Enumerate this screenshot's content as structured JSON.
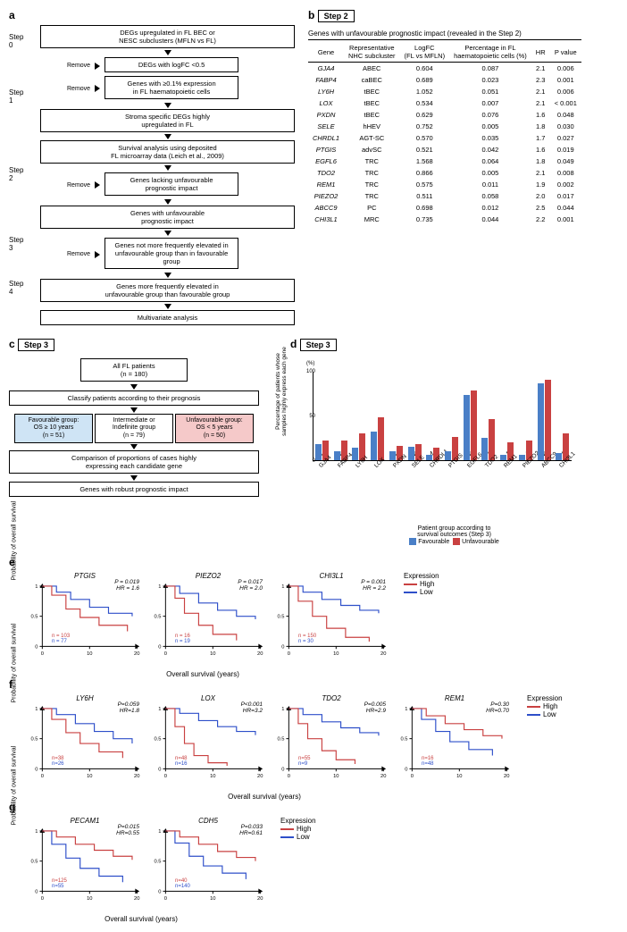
{
  "panelA": {
    "steps": [
      "Step\n0",
      "Step\n1",
      "Step\n2",
      "Step\n3",
      "Step\n4"
    ],
    "box0": "DEGs upregulated in FL BEC or\nNESC subclusters (MFLN vs FL)",
    "remove1a": "DEGs with logFC <0.5",
    "remove1b": "Genes with ≥0.1% expression\nin FL haematopoietic cells",
    "box1": "Stroma specific DEGs highly\nupregulated in FL",
    "box2a": "Survival analysis using deposited\nFL microarray data (Leich et al., 2009)",
    "remove2": "Genes lacking unfavourable\nprognostic impact",
    "box2b": "Genes with unfavourable\nprognostic impact",
    "remove3": "Genes not more frequently elevated in\nunfavourable group than in favourable group",
    "box3": "Genes more frequently elevated in\nunfavourable group than favourable group",
    "box4": "Multivariate analysis",
    "remove_label": "Remove"
  },
  "panelB": {
    "caption": "Genes with unfavourable prognostic impact (revealed in the Step 2)",
    "headers": [
      "Gene",
      "Representative\nNHC subcluster",
      "LogFC\n(FL vs MFLN)",
      "Percentage in FL\nhaematopoietic cells (%)",
      "HR",
      "P value"
    ],
    "rows": [
      [
        "GJA4",
        "ABEC",
        "0.604",
        "0.087",
        "2.1",
        "0.006"
      ],
      [
        "FABP4",
        "caBEC",
        "0.689",
        "0.023",
        "2.3",
        "0.001"
      ],
      [
        "LY6H",
        "tBEC",
        "1.052",
        "0.051",
        "2.1",
        "0.006"
      ],
      [
        "LOX",
        "tBEC",
        "0.534",
        "0.007",
        "2.1",
        "< 0.001"
      ],
      [
        "PXDN",
        "tBEC",
        "0.629",
        "0.076",
        "1.6",
        "0.048"
      ],
      [
        "SELE",
        "hHEV",
        "0.752",
        "0.005",
        "1.8",
        "0.030"
      ],
      [
        "CHRDL1",
        "AGT-SC",
        "0.570",
        "0.035",
        "1.7",
        "0.027"
      ],
      [
        "PTGIS",
        "advSC",
        "0.521",
        "0.042",
        "1.6",
        "0.019"
      ],
      [
        "EGFL6",
        "TRC",
        "1.568",
        "0.064",
        "1.8",
        "0.049"
      ],
      [
        "TDO2",
        "TRC",
        "0.866",
        "0.005",
        "2.1",
        "0.008"
      ],
      [
        "REM1",
        "TRC",
        "0.575",
        "0.011",
        "1.9",
        "0.002"
      ],
      [
        "PIEZO2",
        "TRC",
        "0.511",
        "0.058",
        "2.0",
        "0.017"
      ],
      [
        "ABCC9",
        "PC",
        "0.698",
        "0.012",
        "2.5",
        "0.044"
      ],
      [
        "CHI3L1",
        "MRC",
        "0.735",
        "0.044",
        "2.2",
        "0.001"
      ]
    ]
  },
  "panelC": {
    "box1": "All FL patients\n(n = 180)",
    "box2": "Classify patients according to their prognosis",
    "fav": "Favourable group:\nOS ≥ 10 years\n(n = 51)",
    "int": "Intermediate or\nIndefinite group\n(n = 79)",
    "unfav": "Unfavourable group:\nOS < 5 years\n(n = 50)",
    "box3": "Comparison of proportions of cases highly\nexpressing each candidate gene",
    "box4": "Genes with robust prognostic impact"
  },
  "panelD": {
    "ylabel": "Percentage of patients whose\nsamples highly express each gene",
    "ymax": 100,
    "yticks": [
      0,
      50,
      100
    ],
    "genes": [
      "GJA4",
      "FABP4",
      "LY6H",
      "LOX",
      "PXDN",
      "SELE",
      "CHRDL1",
      "PTGIS",
      "EGFL6",
      "TDO2",
      "REM1",
      "PIEZO2",
      "ABCC9",
      "CHI3L1"
    ],
    "fav_vals": [
      18,
      10,
      14,
      32,
      10,
      15,
      6,
      10,
      73,
      25,
      6,
      6,
      86,
      8
    ],
    "unfav_vals": [
      22,
      22,
      30,
      48,
      16,
      18,
      14,
      26,
      78,
      46,
      20,
      22,
      90,
      30
    ],
    "sig": [
      "NS",
      "NS",
      "*",
      "*",
      "NS",
      "NS",
      "NS",
      "*",
      "NS",
      "**",
      "**",
      "*",
      "NS",
      "**"
    ],
    "xlabel": "Patient group according to\nsurvival outcomes (Step 3)",
    "leg_fav": "Favourable",
    "leg_unfav": "Unfavourable",
    "colors": {
      "fav": "#4a7fc7",
      "unfav": "#c94141"
    }
  },
  "km": {
    "ylabel": "Probability of\noverall survival",
    "xlabel": "Overall survival (years)",
    "xlim": [
      0,
      20
    ],
    "ylim": [
      0,
      1
    ],
    "xticks": [
      0,
      10,
      20
    ],
    "yticks": [
      0,
      0.5,
      1.0
    ],
    "leg_high": "High",
    "leg_low": "Low",
    "leg_title": "Expression",
    "colors": {
      "high": "#c94141",
      "low": "#2e4fc9"
    }
  },
  "panelE": [
    {
      "gene": "PTGIS",
      "p": "P = 0.019",
      "hr": "HR = 1.6",
      "n_high": "n = 103",
      "n_low": "n = 77",
      "high": [
        [
          0,
          1
        ],
        [
          2,
          0.85
        ],
        [
          5,
          0.62
        ],
        [
          8,
          0.48
        ],
        [
          12,
          0.35
        ],
        [
          18,
          0.25
        ]
      ],
      "low": [
        [
          0,
          1
        ],
        [
          3,
          0.9
        ],
        [
          6,
          0.78
        ],
        [
          10,
          0.65
        ],
        [
          14,
          0.55
        ],
        [
          19,
          0.5
        ]
      ]
    },
    {
      "gene": "PIEZO2",
      "p": "P = 0.017",
      "hr": "HR = 2.0",
      "n_high": "n = 16",
      "n_low": "n = 19",
      "high": [
        [
          0,
          1
        ],
        [
          2,
          0.8
        ],
        [
          4,
          0.55
        ],
        [
          7,
          0.35
        ],
        [
          10,
          0.2
        ],
        [
          15,
          0.1
        ]
      ],
      "low": [
        [
          0,
          1
        ],
        [
          3,
          0.88
        ],
        [
          7,
          0.72
        ],
        [
          11,
          0.6
        ],
        [
          15,
          0.5
        ],
        [
          19,
          0.45
        ]
      ]
    },
    {
      "gene": "CHI3L1",
      "p": "P = 0.001",
      "hr": "HR = 2.2",
      "n_high": "n = 150",
      "n_low": "n = 30",
      "high": [
        [
          0,
          1
        ],
        [
          2,
          0.75
        ],
        [
          5,
          0.5
        ],
        [
          8,
          0.3
        ],
        [
          12,
          0.15
        ],
        [
          17,
          0.08
        ]
      ],
      "low": [
        [
          0,
          1
        ],
        [
          3,
          0.9
        ],
        [
          7,
          0.78
        ],
        [
          11,
          0.68
        ],
        [
          15,
          0.6
        ],
        [
          19,
          0.55
        ]
      ]
    }
  ],
  "panelF": [
    {
      "gene": "LY6H",
      "p": "P=0.059",
      "hr": "HR=1.8",
      "n_high": "n=38",
      "n_low": "n=26",
      "high": [
        [
          0,
          1
        ],
        [
          2,
          0.82
        ],
        [
          5,
          0.6
        ],
        [
          8,
          0.42
        ],
        [
          12,
          0.28
        ],
        [
          17,
          0.18
        ]
      ],
      "low": [
        [
          0,
          1
        ],
        [
          3,
          0.9
        ],
        [
          7,
          0.75
        ],
        [
          11,
          0.62
        ],
        [
          15,
          0.5
        ],
        [
          19,
          0.42
        ]
      ]
    },
    {
      "gene": "LOX",
      "p": "P<0.001",
      "hr": "HR=3.2",
      "n_high": "n=48",
      "n_low": "n=16",
      "high": [
        [
          0,
          1
        ],
        [
          2,
          0.7
        ],
        [
          4,
          0.42
        ],
        [
          6,
          0.22
        ],
        [
          9,
          0.1
        ],
        [
          13,
          0.05
        ]
      ],
      "low": [
        [
          0,
          1
        ],
        [
          3,
          0.92
        ],
        [
          7,
          0.8
        ],
        [
          11,
          0.7
        ],
        [
          15,
          0.62
        ],
        [
          19,
          0.56
        ]
      ]
    },
    {
      "gene": "TDO2",
      "p": "P=0.005",
      "hr": "HR=2.9",
      "n_high": "n=55",
      "n_low": "n=9",
      "high": [
        [
          0,
          1
        ],
        [
          2,
          0.75
        ],
        [
          4,
          0.5
        ],
        [
          7,
          0.3
        ],
        [
          10,
          0.15
        ],
        [
          14,
          0.08
        ]
      ],
      "low": [
        [
          0,
          1
        ],
        [
          3,
          0.9
        ],
        [
          7,
          0.78
        ],
        [
          11,
          0.68
        ],
        [
          15,
          0.6
        ],
        [
          19,
          0.55
        ]
      ]
    },
    {
      "gene": "REM1",
      "p": "P=0.30",
      "hr": "HR=0.70",
      "n_high": "n=16",
      "n_low": "n=48",
      "high": [
        [
          0,
          1
        ],
        [
          3,
          0.88
        ],
        [
          7,
          0.75
        ],
        [
          11,
          0.65
        ],
        [
          15,
          0.55
        ],
        [
          19,
          0.5
        ]
      ],
      "low": [
        [
          0,
          1
        ],
        [
          2,
          0.82
        ],
        [
          5,
          0.62
        ],
        [
          8,
          0.45
        ],
        [
          12,
          0.32
        ],
        [
          17,
          0.22
        ]
      ]
    }
  ],
  "panelG": [
    {
      "gene": "PECAM1",
      "p": "P=0.015",
      "hr": "HR=0.55",
      "n_high": "n=125",
      "n_low": "n=55",
      "high": [
        [
          0,
          1
        ],
        [
          3,
          0.9
        ],
        [
          7,
          0.78
        ],
        [
          11,
          0.68
        ],
        [
          15,
          0.58
        ],
        [
          19,
          0.52
        ]
      ],
      "low": [
        [
          0,
          1
        ],
        [
          2,
          0.78
        ],
        [
          5,
          0.55
        ],
        [
          8,
          0.38
        ],
        [
          12,
          0.25
        ],
        [
          17,
          0.15
        ]
      ]
    },
    {
      "gene": "CDH5",
      "p": "P=0.033",
      "hr": "HR=0.61",
      "n_high": "n=40",
      "n_low": "n=140",
      "high": [
        [
          0,
          1
        ],
        [
          3,
          0.9
        ],
        [
          7,
          0.78
        ],
        [
          11,
          0.66
        ],
        [
          15,
          0.56
        ],
        [
          19,
          0.5
        ]
      ],
      "low": [
        [
          0,
          1
        ],
        [
          2,
          0.8
        ],
        [
          5,
          0.58
        ],
        [
          8,
          0.42
        ],
        [
          12,
          0.3
        ],
        [
          17,
          0.2
        ]
      ]
    }
  ]
}
